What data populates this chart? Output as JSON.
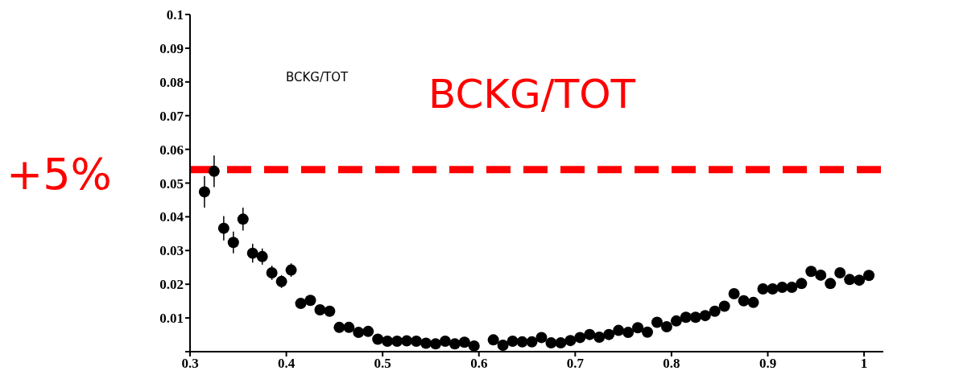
{
  "chart_data": {
    "type": "scatter",
    "x": [
      0.315,
      0.325,
      0.335,
      0.345,
      0.355,
      0.365,
      0.375,
      0.385,
      0.395,
      0.405,
      0.415,
      0.425,
      0.435,
      0.445,
      0.455,
      0.465,
      0.475,
      0.485,
      0.495,
      0.505,
      0.515,
      0.525,
      0.535,
      0.545,
      0.555,
      0.565,
      0.575,
      0.585,
      0.595,
      0.605,
      0.615,
      0.625,
      0.635,
      0.645,
      0.655,
      0.665,
      0.675,
      0.685,
      0.695,
      0.705,
      0.715,
      0.725,
      0.735,
      0.745,
      0.755,
      0.765,
      0.775,
      0.785,
      0.795,
      0.805,
      0.815,
      0.825,
      0.835,
      0.845,
      0.855,
      0.865,
      0.875,
      0.885,
      0.895,
      0.905,
      0.915,
      0.925,
      0.935,
      0.945,
      0.955,
      0.965,
      0.975,
      0.985,
      0.995,
      1.005
    ],
    "series": [
      {
        "color": "#000000",
        "values": [
          0.0474,
          0.0535,
          0.0366,
          0.0324,
          0.0393,
          0.0292,
          0.0282,
          0.0234,
          0.0208,
          0.0242,
          0.0143,
          0.0152,
          0.0124,
          0.012,
          0.0072,
          0.0072,
          0.0057,
          0.006,
          0.0037,
          0.0031,
          0.0031,
          0.0032,
          0.0031,
          0.0025,
          0.0023,
          0.0031,
          0.0023,
          0.0028,
          0.0017,
          null,
          0.0035,
          0.0019,
          0.0031,
          0.0029,
          0.0029,
          0.0042,
          0.0026,
          0.0026,
          0.0033,
          0.0042,
          0.0051,
          0.0043,
          0.0051,
          0.0063,
          0.0057,
          0.0071,
          0.0058,
          0.0087,
          0.0074,
          0.0091,
          0.0102,
          0.0102,
          0.0107,
          0.012,
          0.0135,
          0.0172,
          0.0151,
          0.0146,
          0.0186,
          0.0186,
          0.0191,
          0.0191,
          0.0202,
          0.0238,
          0.0227,
          0.0202,
          0.0234,
          0.0214,
          0.0212,
          0.0226
        ],
        "errors": [
          0.0047,
          0.0047,
          0.0036,
          0.0032,
          0.0034,
          0.0028,
          0.0024,
          0.0021,
          0.0019,
          0.002,
          null,
          null,
          null,
          null,
          null,
          null,
          null,
          null,
          null,
          null,
          null,
          null,
          null,
          null,
          null,
          null,
          null,
          null,
          null,
          null,
          null,
          null,
          null,
          null,
          null,
          null,
          null,
          null,
          null,
          null,
          null,
          null,
          null,
          null,
          null,
          null,
          null,
          null,
          null,
          null,
          null,
          null,
          null,
          null,
          null,
          null,
          null,
          null,
          null,
          null,
          null,
          null,
          null,
          null,
          null,
          null,
          null,
          null,
          null,
          null
        ]
      }
    ],
    "xlim": [
      0.3,
      1.02
    ],
    "xticks": [
      0.3,
      0.4,
      0.5,
      0.6,
      0.7,
      0.8,
      0.9,
      1
    ],
    "ylim": [
      0,
      0.1
    ],
    "yticks": [
      {
        "value": 0,
        "label": null
      },
      0.01,
      0.02,
      0.03,
      0.04,
      0.05,
      0.06,
      0.07,
      0.08,
      0.09,
      0.1
    ],
    "marker": "circle",
    "grid": false,
    "legend": false,
    "ref_lines": [
      {
        "axis": "y",
        "value": 0.054,
        "label": "+5%",
        "color": "#ff0000",
        "line_style": "dashed"
      }
    ],
    "annotations": [
      "BCKG/TOT",
      "BCKG/TOT"
    ]
  }
}
